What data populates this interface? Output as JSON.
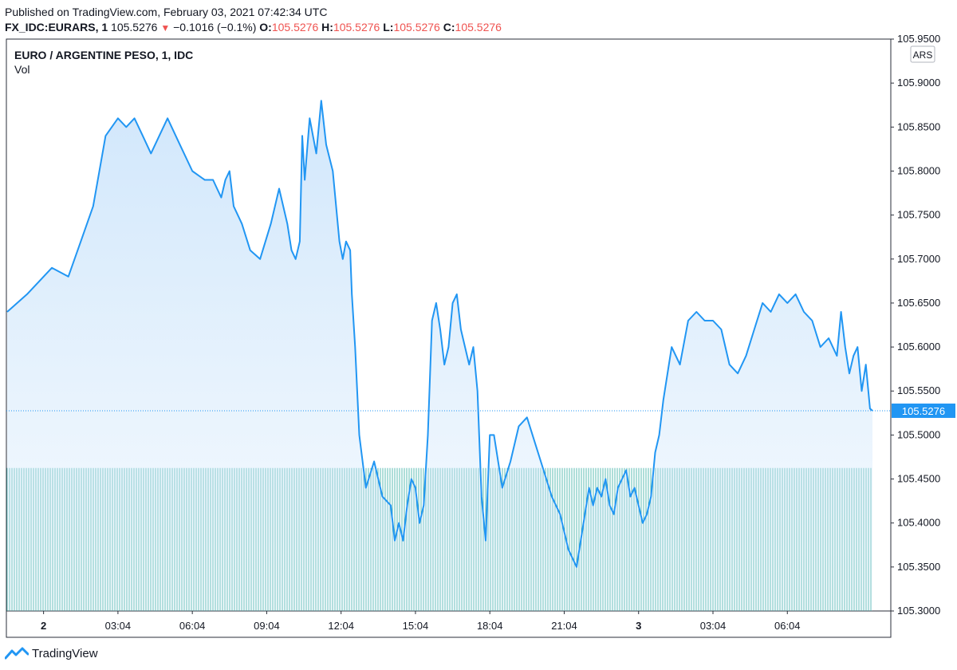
{
  "header": {
    "published": "Published on TradingView.com, February 03, 2021 07:42:34 UTC",
    "symbol": "FX_IDC:EURARS, 1",
    "last": "105.5276",
    "arrow": "▼",
    "change": "−0.1016 (−0.1%)",
    "o_label": "O:",
    "o_value": "105.5276",
    "h_label": "H:",
    "h_value": "105.5276",
    "l_label": "L:",
    "l_value": "105.5276",
    "c_label": "C:",
    "c_value": "105.5276"
  },
  "footer": {
    "brand": "TradingView"
  },
  "colors": {
    "line": "#2196f3",
    "fill_top": "#cfe6fb",
    "volume": "#26a69a",
    "price_tag": "#2196f3",
    "down": "#ef5350"
  },
  "chart_data": {
    "type": "area",
    "title": "EURO / ARGENTINE PESO, 1, IDC",
    "subtitle": "Vol",
    "currency_label": "ARS",
    "last_price_label": "105.5276",
    "ylim": [
      105.3,
      105.95
    ],
    "y_ticks": [
      "105.9500",
      "105.9000",
      "105.8500",
      "105.8000",
      "105.7500",
      "105.7000",
      "105.6500",
      "105.6000",
      "105.5500",
      "105.5000",
      "105.4500",
      "105.4000",
      "105.3500",
      "105.3000"
    ],
    "x_ticks": [
      "2",
      "03:04",
      "06:04",
      "09:04",
      "12:04",
      "15:04",
      "18:04",
      "21:04",
      "3",
      "03:04",
      "06:04"
    ],
    "x_tick_bold": [
      true,
      false,
      false,
      false,
      false,
      false,
      false,
      false,
      true,
      false,
      false
    ],
    "x_range": [
      -45,
      1003
    ],
    "last_value": 105.5276,
    "series": [
      {
        "x": [
          -44,
          -20,
          10,
          30,
          45,
          60,
          75,
          90,
          100,
          110,
          120,
          130,
          140,
          150,
          165,
          180,
          195,
          205,
          210,
          215,
          220,
          225,
          230,
          240,
          250,
          262,
          275,
          285,
          295,
          300,
          305,
          310,
          313,
          316,
          322,
          330,
          336,
          342,
          350,
          358,
          362,
          366,
          371,
          373,
          377,
          382,
          390,
          400,
          410,
          420,
          425,
          430,
          435,
          440,
          445,
          450,
          455,
          460,
          465,
          470,
          475,
          480,
          485,
          490,
          495,
          500,
          505,
          510,
          515,
          520,
          525,
          530,
          535,
          540,
          545,
          555,
          565,
          575,
          585,
          595,
          605,
          615,
          625,
          635,
          645,
          655,
          660,
          665,
          670,
          675,
          680,
          685,
          690,
          695,
          700,
          705,
          710,
          715,
          720,
          725,
          730,
          735,
          740,
          745,
          750,
          760,
          770,
          780,
          790,
          800,
          810,
          820,
          830,
          840,
          850,
          860,
          870,
          880,
          890,
          900,
          910,
          920,
          930,
          940,
          950,
          960,
          965,
          970,
          975,
          980,
          985,
          990,
          995,
          1000,
          1003
        ],
        "y": [
          105.64,
          105.66,
          105.69,
          105.68,
          105.72,
          105.76,
          105.84,
          105.86,
          105.85,
          105.86,
          105.84,
          105.82,
          105.84,
          105.86,
          105.83,
          105.8,
          105.79,
          105.79,
          105.78,
          105.77,
          105.79,
          105.8,
          105.76,
          105.74,
          105.71,
          105.7,
          105.74,
          105.78,
          105.74,
          105.71,
          105.7,
          105.72,
          105.84,
          105.79,
          105.86,
          105.82,
          105.88,
          105.83,
          105.8,
          105.72,
          105.7,
          105.72,
          105.71,
          105.66,
          105.6,
          105.5,
          105.44,
          105.47,
          105.43,
          105.42,
          105.38,
          105.4,
          105.38,
          105.42,
          105.45,
          105.44,
          105.4,
          105.42,
          105.5,
          105.63,
          105.65,
          105.62,
          105.58,
          105.6,
          105.65,
          105.66,
          105.62,
          105.6,
          105.58,
          105.6,
          105.55,
          105.43,
          105.38,
          105.5,
          105.5,
          105.44,
          105.47,
          105.51,
          105.52,
          105.49,
          105.46,
          105.43,
          105.41,
          105.37,
          105.35,
          105.41,
          105.44,
          105.42,
          105.44,
          105.43,
          105.45,
          105.42,
          105.41,
          105.44,
          105.45,
          105.46,
          105.43,
          105.44,
          105.42,
          105.4,
          105.41,
          105.43,
          105.48,
          105.5,
          105.54,
          105.6,
          105.58,
          105.63,
          105.64,
          105.63,
          105.63,
          105.62,
          105.58,
          105.57,
          105.59,
          105.62,
          105.65,
          105.64,
          105.66,
          105.65,
          105.66,
          105.64,
          105.63,
          105.6,
          105.61,
          105.59,
          105.64,
          105.6,
          105.57,
          105.59,
          105.6,
          105.55,
          105.58,
          105.53,
          105.5276
        ]
      }
    ],
    "volume_level": 0.25
  }
}
